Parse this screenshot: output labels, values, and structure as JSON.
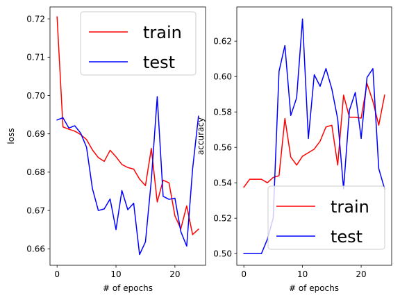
{
  "chart_data": [
    {
      "type": "line",
      "xlabel": "# of epochs",
      "ylabel": "loss",
      "xlim": [
        -1.2,
        25.2
      ],
      "ylim": [
        0.6557,
        0.7231
      ],
      "xticks": [
        0,
        10,
        20
      ],
      "yticks": [
        0.66,
        0.67,
        0.68,
        0.69,
        0.7,
        0.71,
        0.72
      ],
      "legend_position": "top-right",
      "x": [
        0,
        1,
        2,
        3,
        4,
        5,
        6,
        7,
        8,
        9,
        10,
        11,
        12,
        13,
        14,
        15,
        16,
        17,
        18,
        19,
        20,
        21,
        22,
        23,
        24
      ],
      "series": [
        {
          "name": "train",
          "color": "#ff0000",
          "values": [
            0.7205,
            0.6918,
            0.6912,
            0.6907,
            0.6898,
            0.6885,
            0.6858,
            0.6838,
            0.6828,
            0.6857,
            0.684,
            0.682,
            0.6812,
            0.6808,
            0.6782,
            0.6765,
            0.6862,
            0.6722,
            0.6779,
            0.6772,
            0.6686,
            0.6652,
            0.6712,
            0.6637,
            0.6651
          ]
        },
        {
          "name": "test",
          "color": "#0000ff",
          "values": [
            0.6936,
            0.6942,
            0.6915,
            0.6921,
            0.6902,
            0.6865,
            0.6757,
            0.67,
            0.6704,
            0.673,
            0.665,
            0.6752,
            0.6702,
            0.6719,
            0.6585,
            0.6618,
            0.678,
            0.6997,
            0.6737,
            0.6729,
            0.6732,
            0.6645,
            0.6607,
            0.6808,
            0.6946
          ]
        }
      ]
    },
    {
      "type": "line",
      "xlabel": "# of epochs",
      "ylabel": "accuracy",
      "xlim": [
        -1.2,
        25.2
      ],
      "ylim": [
        0.4934,
        0.6393
      ],
      "xticks": [
        0,
        10,
        20
      ],
      "yticks": [
        0.5,
        0.52,
        0.54,
        0.56,
        0.58,
        0.6,
        0.62
      ],
      "legend_position": "bottom-right",
      "x": [
        0,
        1,
        2,
        3,
        4,
        5,
        6,
        7,
        8,
        9,
        10,
        11,
        12,
        13,
        14,
        15,
        16,
        17,
        18,
        19,
        20,
        21,
        22,
        23,
        24
      ],
      "series": [
        {
          "name": "train",
          "color": "#ff0000",
          "values": [
            0.5375,
            0.542,
            0.542,
            0.542,
            0.54,
            0.543,
            0.544,
            0.5763,
            0.5545,
            0.55,
            0.555,
            0.557,
            0.559,
            0.5635,
            0.5715,
            0.5725,
            0.55,
            0.5895,
            0.577,
            0.577,
            0.5765,
            0.596,
            0.586,
            0.5725,
            0.5895
          ]
        },
        {
          "name": "test",
          "color": "#0000ff",
          "values": [
            0.5,
            0.5,
            0.5,
            0.5,
            0.508,
            0.52,
            0.603,
            0.6175,
            0.578,
            0.588,
            0.6325,
            0.565,
            0.601,
            0.5945,
            0.6045,
            0.593,
            0.576,
            0.5365,
            0.581,
            0.591,
            0.565,
            0.5995,
            0.6045,
            0.548,
            0.5365
          ]
        }
      ]
    }
  ]
}
